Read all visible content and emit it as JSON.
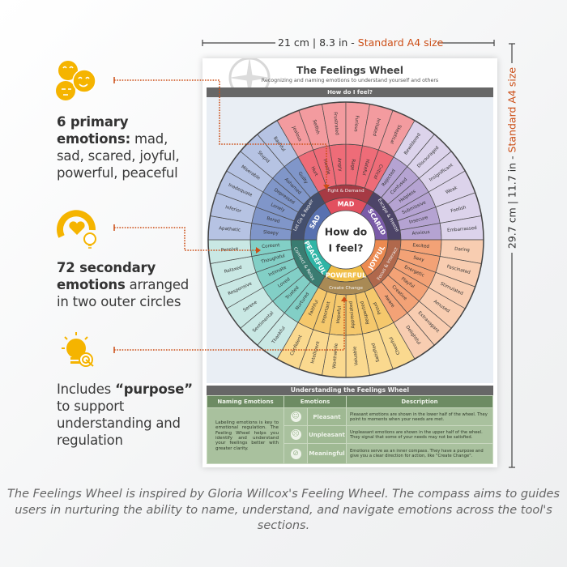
{
  "dimensions": {
    "width_label": "21 cm | 8.3 in - ",
    "width_accent": "Standard A4 size",
    "height_label": "29.7 cm | 11.7 in - ",
    "height_accent": "Standard A4 size"
  },
  "features": [
    {
      "icon": "emoji-faces-icon",
      "bold": "6 primary emotions:",
      "text": " mad, sad, scared, joyful, powerful, peaceful"
    },
    {
      "icon": "heart-gauge-lightbulb-icon",
      "bold": "72 secondary emotions",
      "text": " arranged in two outer circles"
    },
    {
      "icon": "lightbulb-target-icon",
      "pre": "Includes ",
      "bold": "“purpose”",
      "text": " to support understanding and regulation"
    }
  ],
  "poster": {
    "title": "The Feelings Wheel",
    "subtitle": "Recognizing and naming emotions to understand yourself and others",
    "wheel_header": "How do I feel?",
    "center_line1": "How do",
    "center_line2": "I feel?",
    "sections": [
      {
        "name": "MAD",
        "purpose": "Fight & Demand",
        "core": "#e2505f",
        "ring": "#a63a44",
        "inner_color": "#ee6c78",
        "outer_color": "#f39b9f",
        "inner": [
          "Hurt",
          "Hostile",
          "Angry",
          "Rage",
          "Hateful",
          "Critical"
        ],
        "outer": [
          "Jealous",
          "Selfish",
          "Frustrated",
          "Furious",
          "Irritated",
          "Skeptical"
        ]
      },
      {
        "name": "SCARED",
        "purpose": "Escape & Freeze",
        "core": "#7a5ba8",
        "ring": "#4d4468",
        "inner_color": "#b5a3d2",
        "outer_color": "#dcd3eb",
        "inner": [
          "Rejected",
          "Confused",
          "Helpless",
          "Submissive",
          "Insecure",
          "Anxious"
        ],
        "outer": [
          "Bewildered",
          "Discouraged",
          "Insignificant",
          "Weak",
          "Foolish",
          "Embarrassed"
        ]
      },
      {
        "name": "JOYFUL",
        "purpose": "Focus & Interact",
        "core": "#ec8a50",
        "ring": "#b0684c",
        "inner_color": "#f3a276",
        "outer_color": "#f8cdb1",
        "inner": [
          "Excited",
          "Sexy",
          "Energetic",
          "Playful",
          "Creative",
          "Aware"
        ],
        "outer": [
          "Daring",
          "Fascinated",
          "Stimulated",
          "Amused",
          "Extravagant",
          "Delightful"
        ]
      },
      {
        "name": "POWERFUL",
        "purpose": "Create Change",
        "core": "#f1bf48",
        "ring": "#a98a55",
        "inner_color": "#f5c86c",
        "outer_color": "#fad98f",
        "inner": [
          "Proud",
          "Respected",
          "Appreciated",
          "Hopeful",
          "Important",
          "Faithful"
        ],
        "outer": [
          "Cheerful",
          "Satisfied",
          "Valuable",
          "Worthwhile",
          "Intelligent",
          "Confident"
        ]
      },
      {
        "name": "PEACEFUL",
        "purpose": "Connect & Relax",
        "core": "#30b5a6",
        "ring": "#3a7c71",
        "inner_color": "#82cfc6",
        "outer_color": "#c9e8e4",
        "inner": [
          "Nurtured",
          "Trusted",
          "Loved",
          "Intimate",
          "Thoughtful",
          "Content"
        ],
        "outer": [
          "Thankful",
          "Sentimental",
          "Serene",
          "Responsive",
          "Relaxed",
          "Pensive"
        ]
      },
      {
        "name": "SAD",
        "purpose": "Let Go & Repair",
        "core": "#5871b0",
        "ring": "#444f6e",
        "inner_color": "#8096c9",
        "outer_color": "#b6c3e3",
        "inner": [
          "Sleepy",
          "Bored",
          "Lonely",
          "Depressed",
          "Ashamed",
          "Guilty"
        ],
        "outer": [
          "Apathetic",
          "Inferior",
          "Inadequate",
          "Miserable",
          "Stupid",
          "Bashful"
        ]
      }
    ],
    "understanding": {
      "title": "Understanding the Feelings Wheel",
      "headers": [
        "Naming Emotions",
        "Emotions",
        "Description"
      ],
      "naming_text": "Labeling emotions is key to emotional regulation. The Feeling Wheel helps you identify and understand your feelings better with greater clarity.",
      "rows": [
        {
          "icon": "smiley-face-icon",
          "glyph": "☺",
          "label": "Pleasant",
          "description": "Pleasant emotions are shown in the lower half of the wheel. They point to moments when your needs are met."
        },
        {
          "icon": "sad-face-icon",
          "glyph": "☹",
          "label": "Unpleasant",
          "description": "Unpleasant emotions are shown in the upper half of the wheel. They signal that some of your needs may not be satisfied."
        },
        {
          "icon": "compass-icon",
          "glyph": "⊘",
          "label": "Meaningful",
          "description": "Emotions serve as an inner compass. They have a purpose and give you a clear direction for action, like \"Create Change\"."
        }
      ]
    }
  },
  "caption": "The Feelings Wheel is inspired by Gloria Willcox's Feeling Wheel. The compass aims to guides users in nurturing the ability to name, understand, and navigate emotions across the tool's sections.",
  "colors": {
    "accent": "#cc4e16",
    "icon_yellow": "#f5b400"
  }
}
